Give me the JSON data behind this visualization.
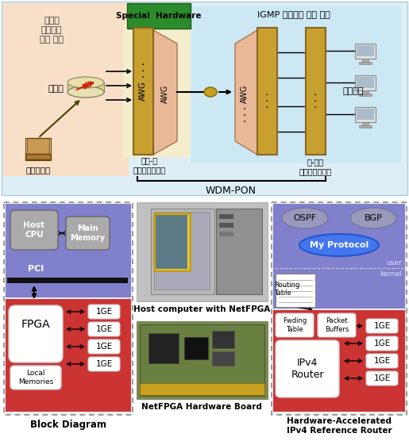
{
  "fig_w": 5.15,
  "fig_h": 5.56,
  "dpi": 100,
  "top": {
    "bg": "#ddeef5",
    "routing_bg": "#f8dfc8",
    "igmp_bg": "#cce8f4",
    "special_hw_color": "#2a8c2a",
    "awg_yellow": "#c8a030",
    "awg_pink": "#e8b898",
    "gold_circle": "#c8a020",
    "routing_label": "라우팅\n프로토콜\n동작 영역",
    "igmp_label": "IGMP 프로토콜 동작 영역",
    "special_hw_label": "Special  Hardware",
    "router_label": "라우터",
    "video_label": "비디오서버",
    "interface_label1": "전기-광\n인터페이스모들",
    "interface_label2": "광-전기\n인터페이스모들",
    "subscriber_label": "가입자단",
    "wdm_label": "WDM-PON"
  },
  "bottom": {
    "bd_blue": "#8080cc",
    "bd_red": "#cc3333",
    "hw_blue": "#8080cc",
    "hw_red": "#cc3333",
    "bd_label": "Block Diagram",
    "host_cpu": "Host\nCPU",
    "main_mem": "Main\nMemory",
    "pci": "PCI",
    "fpga": "FPGA",
    "local_mem": "Local\nMemories",
    "ge": "1GE",
    "host_label": "Host computer with NetFPGA",
    "board_label": "NetFPGA Hardware Board",
    "hw_label": "Hardware-Accelerated\nIPv4 Reference Router",
    "ospf": "OSPF",
    "bgp": "BGP",
    "my_protocol": "My Protocol",
    "user": "user",
    "kernel": "kernel",
    "routing_table": "Routing\nTable",
    "fwding": "Fwding\nTable",
    "packet_buf": "Packet\nBuffers",
    "ipv4_router": "IPv4\nRouter"
  }
}
